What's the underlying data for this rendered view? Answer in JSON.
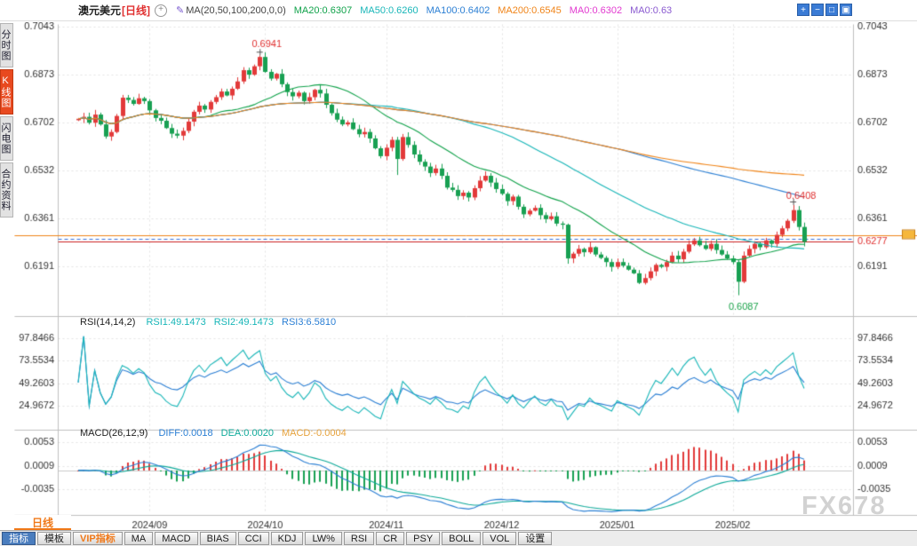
{
  "header": {
    "symbol": "澳元美元",
    "period": "[日线]",
    "add_icon_glyph": "+",
    "edit_icon_glyph": "✎",
    "ma_label": "MA(20,50,100,200,0,0)",
    "ma_values": [
      {
        "text": "MA20:0.6307",
        "color": "#10a24a"
      },
      {
        "text": "MA50:0.6260",
        "color": "#18b6b8"
      },
      {
        "text": "MA100:0.6402",
        "color": "#2b7fd4"
      },
      {
        "text": "MA200:0.6545",
        "color": "#f08418"
      },
      {
        "text": "MA0:0.6302",
        "color": "#e23ad0"
      },
      {
        "text": "MA0:0.63",
        "color": "#8a5ad0"
      }
    ],
    "window_icons": [
      {
        "name": "zoom-in-icon",
        "glyph": "+"
      },
      {
        "name": "zoom-out-icon",
        "glyph": "−"
      },
      {
        "name": "pane-layout-icon",
        "glyph": "□"
      },
      {
        "name": "maximize-icon",
        "glyph": "▣"
      }
    ]
  },
  "sidebar": {
    "items": [
      {
        "label": "分时图",
        "name": "sidebar-item-time-chart",
        "cls": ""
      },
      {
        "label": "K线图",
        "name": "sidebar-item-kline-chart",
        "cls": "active"
      },
      {
        "label": "闪电图",
        "name": "sidebar-item-flash-chart",
        "cls": ""
      },
      {
        "label": "合约资料",
        "name": "sidebar-item-contract-info",
        "cls": ""
      }
    ]
  },
  "period_tab": {
    "label": "日线"
  },
  "toolbar": {
    "tabs": [
      {
        "label": "指标",
        "name": "tab-indicators",
        "cls": "primary"
      },
      {
        "label": "模板",
        "name": "tab-templates",
        "cls": ""
      },
      {
        "label": "VIP指标",
        "name": "tab-vip-indicators",
        "cls": "vip"
      },
      {
        "label": "MA",
        "name": "tab-ma",
        "cls": ""
      },
      {
        "label": "MACD",
        "name": "tab-macd",
        "cls": ""
      },
      {
        "label": "BIAS",
        "name": "tab-bias",
        "cls": ""
      },
      {
        "label": "CCI",
        "name": "tab-cci",
        "cls": ""
      },
      {
        "label": "KDJ",
        "name": "tab-kdj",
        "cls": ""
      },
      {
        "label": "LW%",
        "name": "tab-lw",
        "cls": ""
      },
      {
        "label": "RSI",
        "name": "tab-rsi",
        "cls": ""
      },
      {
        "label": "CR",
        "name": "tab-cr",
        "cls": ""
      },
      {
        "label": "PSY",
        "name": "tab-psy",
        "cls": ""
      },
      {
        "label": "BOLL",
        "name": "tab-boll",
        "cls": ""
      },
      {
        "label": "VOL",
        "name": "tab-vol",
        "cls": ""
      },
      {
        "label": "设置",
        "name": "tab-settings",
        "cls": ""
      }
    ]
  },
  "watermark": {
    "text": "FX678"
  },
  "colors": {
    "up": "#e23a3a",
    "down": "#18a052",
    "ma20": "#10a24a",
    "ma50": "#18b6b8",
    "ma100": "#2b7fd4",
    "ma200": "#f08418",
    "grid": "#e4e4e4",
    "border": "#c0c0c0",
    "axis_text": "#333333",
    "dashed_line": "#3a6fd8",
    "hline_orange": "#f08418",
    "hline_red": "#cc2222",
    "price_label": "#e03030",
    "annotation_up": "#e03030",
    "annotation_down": "#1ba34a",
    "rsi1": "#18b6b8",
    "rsi2": "#2b7fd4",
    "diff": "#2b7fd4",
    "dea": "#0faa9a",
    "hist_pos": "#e23a3a",
    "hist_neg": "#18a052",
    "marker": "#f6b73c"
  },
  "chart_data": {
    "type": "candlestick",
    "symbol": "澳元美元",
    "period": "日线",
    "x_labels": [
      "2024/09",
      "2024/10",
      "2024/11",
      "2024/12",
      "2025/01",
      "2025/02"
    ],
    "month_indices": [
      13,
      34,
      56,
      77,
      98,
      119
    ],
    "first_open": 0.671,
    "closes": [
      0.6715,
      0.6722,
      0.6701,
      0.673,
      0.6695,
      0.6652,
      0.6668,
      0.6725,
      0.679,
      0.6782,
      0.6768,
      0.6788,
      0.6778,
      0.6745,
      0.6718,
      0.6708,
      0.6682,
      0.6662,
      0.6655,
      0.6672,
      0.6705,
      0.674,
      0.6762,
      0.6748,
      0.6775,
      0.6792,
      0.6812,
      0.6798,
      0.6822,
      0.6848,
      0.6888,
      0.6872,
      0.6902,
      0.6935,
      0.6882,
      0.6858,
      0.6875,
      0.6838,
      0.681,
      0.6795,
      0.6808,
      0.6778,
      0.6792,
      0.6818,
      0.6805,
      0.6765,
      0.6735,
      0.6712,
      0.6695,
      0.6702,
      0.6678,
      0.666,
      0.6668,
      0.6645,
      0.661,
      0.6582,
      0.6612,
      0.664,
      0.6572,
      0.665,
      0.6622,
      0.6588,
      0.6562,
      0.6545,
      0.6522,
      0.6538,
      0.6512,
      0.647,
      0.6462,
      0.644,
      0.6452,
      0.6435,
      0.6468,
      0.6495,
      0.6512,
      0.6488,
      0.6465,
      0.6448,
      0.6422,
      0.6438,
      0.6402,
      0.6375,
      0.6388,
      0.6398,
      0.6372,
      0.6358,
      0.6368,
      0.6342,
      0.6338,
      0.6218,
      0.6235,
      0.6252,
      0.624,
      0.6258,
      0.6232,
      0.622,
      0.6205,
      0.6188,
      0.6205,
      0.6192,
      0.6178,
      0.6165,
      0.6131,
      0.6148,
      0.6172,
      0.6195,
      0.6188,
      0.6205,
      0.6228,
      0.6215,
      0.6242,
      0.6268,
      0.6282,
      0.6265,
      0.6252,
      0.627,
      0.6248,
      0.6232,
      0.6218,
      0.6205,
      0.6135,
      0.6228,
      0.6252,
      0.627,
      0.6258,
      0.6282,
      0.627,
      0.6302,
      0.6325,
      0.6352,
      0.639,
      0.633,
      0.6277
    ],
    "wick_overrides": {
      "33": {
        "high": 0.6941
      },
      "58": {
        "low": 0.6515
      },
      "89": {
        "low": 0.6199
      },
      "120": {
        "low": 0.6087
      },
      "130": {
        "high": 0.6408
      }
    },
    "axis": {
      "price_ticks": [
        0.7043,
        0.6873,
        0.6702,
        0.6532,
        0.6361,
        0.6191
      ],
      "rsi_ticks": [
        97.8466,
        73.5534,
        49.2603,
        24.9672
      ],
      "macd_ticks": [
        0.0053,
        0.0009,
        -0.0035
      ]
    },
    "annotations": {
      "peak": {
        "index": 33,
        "text": "0.6941"
      },
      "swing_high": {
        "index": 130,
        "text": "0.6408"
      },
      "trough": {
        "index": 120,
        "text": "0.6087"
      }
    },
    "hlines": {
      "dashed": 0.6289,
      "orange": 0.6302,
      "red": 0.6277,
      "label": "0.6277"
    },
    "ma_periods": [
      20,
      50,
      100,
      200
    ],
    "rsi": {
      "label": "RSI(14,14,2)",
      "periods": [
        6,
        14
      ],
      "values": [
        {
          "text": "RSI1:49.1473",
          "color": "#18b6b8"
        },
        {
          "text": "RSI2:49.1473",
          "color": "#18b6b8"
        },
        {
          "text": "RSI3:6.5810",
          "color": "#2b7fd4"
        }
      ]
    },
    "macd": {
      "label": "MACD(26,12,9)",
      "values": [
        {
          "text": "DIFF:0.0018",
          "color": "#2b7fd4"
        },
        {
          "text": "DEA:0.0020",
          "color": "#0faa9a"
        },
        {
          "text": "MACD:-0.0004",
          "color": "#e6a23c"
        }
      ]
    }
  }
}
